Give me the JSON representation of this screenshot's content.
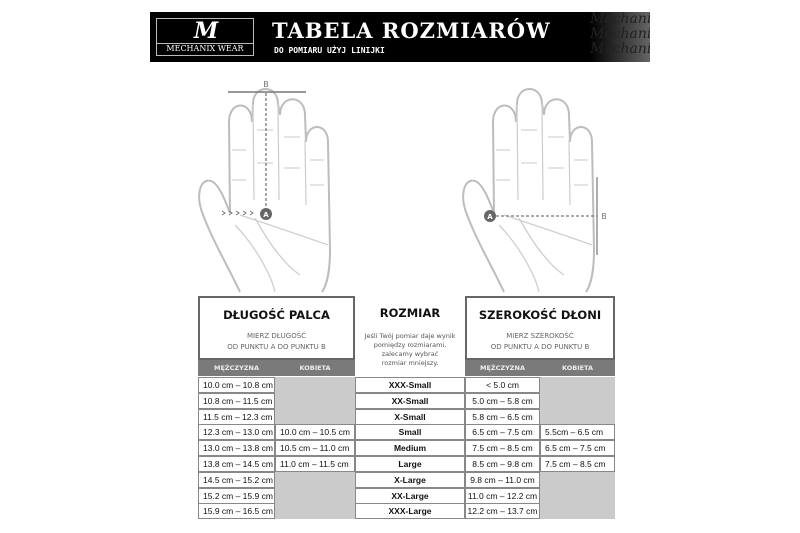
{
  "header": {
    "brand_logo_text": "M",
    "brand_name": "MECHANIX WEAR",
    "title": "TABELA ROZMIARÓW",
    "subtitle": "DO POMIARU UŻYJ LINIJKI",
    "watermark": "Mechanix"
  },
  "diagram": {
    "point_a": "A",
    "point_b": "B"
  },
  "finger_length": {
    "title": "DŁUGOŚĆ PALCA",
    "instruction_1": "MIERZ DŁUGOŚĆ",
    "instruction_2": "OD PUNKTU A DO PUNKTU B",
    "col_men": "MĘŻCZYZNA",
    "col_women": "KOBIETA"
  },
  "size": {
    "title": "ROZMIAR",
    "note_1": "Jeśli Twój pomiar daje wynik",
    "note_2": "pomiędzy rozmiarami,",
    "note_3": "zalecamy wybrać",
    "note_4": "rozmiar mniejszy."
  },
  "palm_width": {
    "title": "SZEROKOŚĆ DŁONI",
    "instruction_1": "MIERZ SZEROKOŚĆ",
    "instruction_2": "OD PUNKTU A DO PUNKTU B",
    "col_men": "MĘŻCZYZNA",
    "col_women": "KOBIETA"
  },
  "rows": [
    {
      "finger_men": "10.0 cm – 10.8 cm",
      "finger_women": "",
      "size": "XXX-Small",
      "palm_men": "< 5.0 cm",
      "palm_women": ""
    },
    {
      "finger_men": "10.8 cm – 11.5 cm",
      "finger_women": "",
      "size": "XX-Small",
      "palm_men": "5.0 cm – 5.8 cm",
      "palm_women": ""
    },
    {
      "finger_men": "11.5 cm – 12.3 cm",
      "finger_women": "",
      "size": "X-Small",
      "palm_men": "5.8 cm – 6.5 cm",
      "palm_women": ""
    },
    {
      "finger_men": "12.3 cm – 13.0 cm",
      "finger_women": "10.0 cm – 10.5 cm",
      "size": "Small",
      "palm_men": "6.5 cm – 7.5 cm",
      "palm_women": "5.5cm – 6.5 cm"
    },
    {
      "finger_men": "13.0 cm – 13.8 cm",
      "finger_women": "10.5 cm – 11.0 cm",
      "size": "Medium",
      "palm_men": "7.5 cm – 8.5 cm",
      "palm_women": "6.5 cm – 7.5 cm"
    },
    {
      "finger_men": "13.8 cm – 14.5 cm",
      "finger_women": "11.0 cm – 11.5 cm",
      "size": "Large",
      "palm_men": "8.5 cm – 9.8 cm",
      "palm_women": "7.5 cm – 8.5 cm"
    },
    {
      "finger_men": "14.5 cm – 15.2 cm",
      "finger_women": "",
      "size": "X-Large",
      "palm_men": "9.8 cm – 11.0 cm",
      "palm_women": ""
    },
    {
      "finger_men": "15.2 cm – 15.9 cm",
      "finger_women": "",
      "size": "XX-Large",
      "palm_men": "11.0 cm – 12.2 cm",
      "palm_women": ""
    },
    {
      "finger_men": "15.9 cm – 16.5 cm",
      "finger_women": "",
      "size": "XXX-Large",
      "palm_men": "12.2 cm – 13.7 cm",
      "palm_women": ""
    }
  ]
}
